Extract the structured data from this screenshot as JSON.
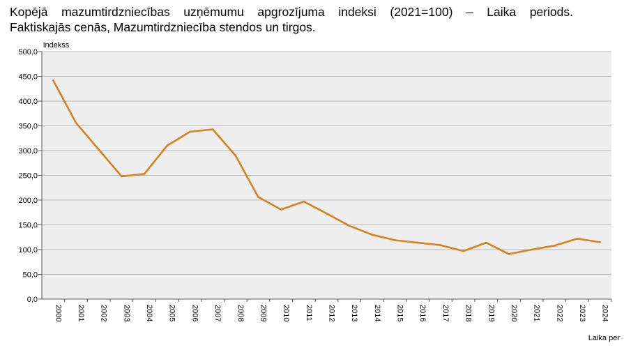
{
  "title": {
    "line1": "Kopējā mazumtirdzniecības uzņēmumu apgrozījuma indeksi (2021=100) – Laika periods.",
    "line2": "Faktiskajās cenās, Mazumtirdzniecība stendos un tirgos."
  },
  "chart_data": {
    "type": "line",
    "ylabel": "indekss",
    "xlabel": "Laika per",
    "ylim": [
      0,
      500
    ],
    "y_ticks": [
      "0,0",
      "50,0",
      "100,0",
      "150,0",
      "200,0",
      "250,0",
      "300,0",
      "350,0",
      "400,0",
      "450,0",
      "500,0"
    ],
    "categories": [
      "2000",
      "2001",
      "2002",
      "2003",
      "2004",
      "2005",
      "2006",
      "2007",
      "2008",
      "2009",
      "2010",
      "2011",
      "2012",
      "2013",
      "2014",
      "2015",
      "2016",
      "2017",
      "2018",
      "2019",
      "2020",
      "2021",
      "2022",
      "2023",
      "2024"
    ],
    "series": [
      {
        "values": [
          442,
          356,
          302,
          248,
          253,
          310,
          338,
          343,
          290,
          206,
          181,
          197,
          173,
          148,
          130,
          119,
          114,
          109,
          97,
          114,
          91,
          100,
          108,
          122,
          115
        ],
        "color": "#d4821e"
      }
    ],
    "grid": true,
    "plot_background": "#eeeeee"
  }
}
